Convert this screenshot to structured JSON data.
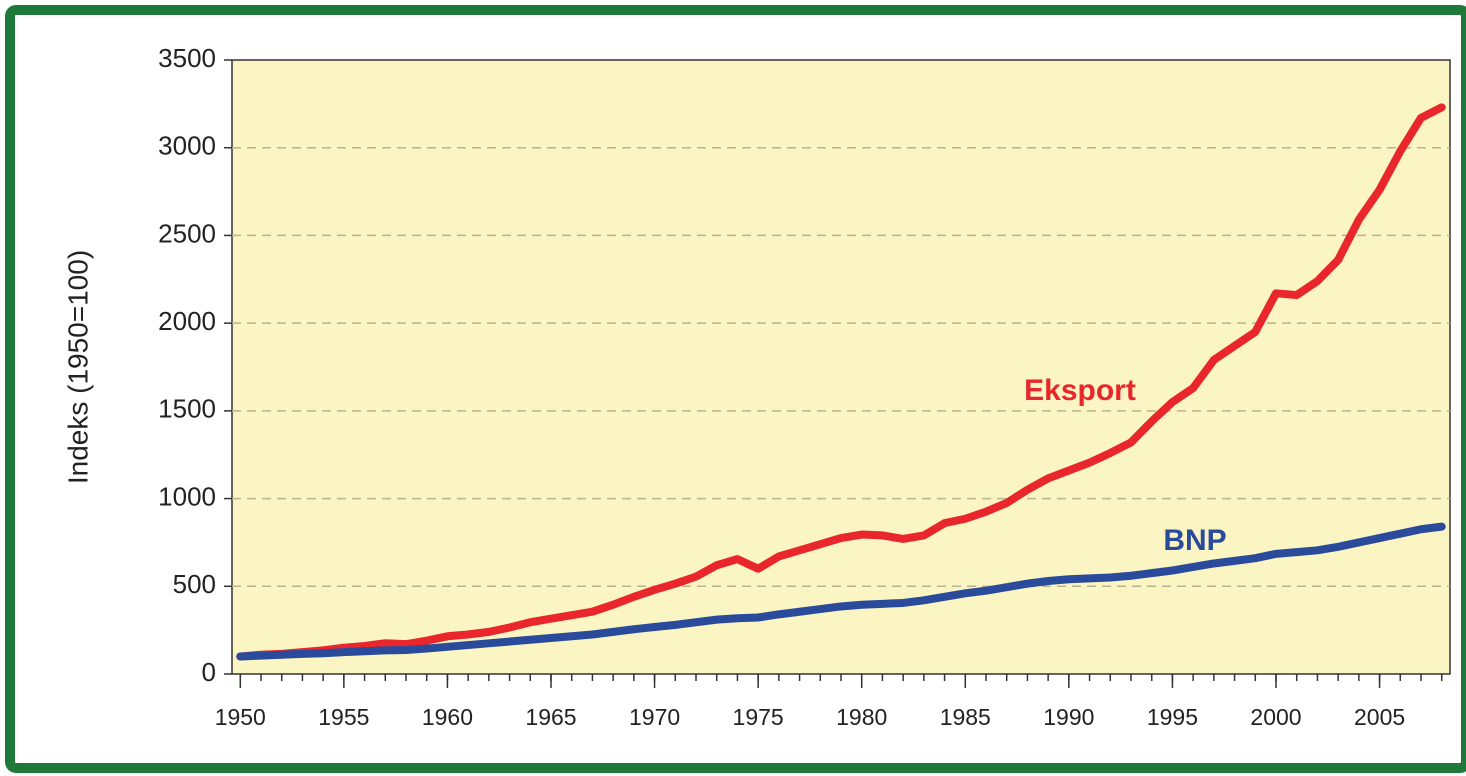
{
  "chart_data": {
    "type": "line",
    "ylabel": "Indeks (1950=100)",
    "x": [
      1950,
      1951,
      1952,
      1953,
      1954,
      1955,
      1956,
      1957,
      1958,
      1959,
      1960,
      1961,
      1962,
      1963,
      1964,
      1965,
      1966,
      1967,
      1968,
      1969,
      1970,
      1971,
      1972,
      1973,
      1974,
      1975,
      1976,
      1977,
      1978,
      1979,
      1980,
      1981,
      1982,
      1983,
      1984,
      1985,
      1986,
      1987,
      1988,
      1989,
      1990,
      1991,
      1992,
      1993,
      1994,
      1995,
      1996,
      1997,
      1998,
      1999,
      2000,
      2001,
      2002,
      2003,
      2004,
      2005,
      2006,
      2007,
      2008
    ],
    "series": [
      {
        "name": "Eksport",
        "color": "#e8262b",
        "values": [
          100,
          110,
          115,
          125,
          135,
          150,
          160,
          175,
          170,
          190,
          215,
          225,
          240,
          265,
          295,
          315,
          335,
          355,
          395,
          440,
          480,
          515,
          555,
          620,
          655,
          600,
          670,
          705,
          740,
          775,
          795,
          790,
          770,
          790,
          860,
          885,
          925,
          975,
          1050,
          1115,
          1160,
          1205,
          1260,
          1320,
          1440,
          1550,
          1630,
          1790,
          1870,
          1950,
          2170,
          2160,
          2240,
          2360,
          2590,
          2760,
          2980,
          3170,
          3230
        ]
      },
      {
        "name": "BNP",
        "color": "#2a4a9c",
        "values": [
          100,
          105,
          110,
          115,
          118,
          125,
          130,
          135,
          137,
          145,
          155,
          165,
          175,
          185,
          195,
          205,
          215,
          225,
          240,
          255,
          268,
          280,
          295,
          310,
          318,
          322,
          340,
          355,
          370,
          385,
          395,
          400,
          405,
          420,
          440,
          460,
          475,
          495,
          515,
          530,
          540,
          545,
          550,
          560,
          575,
          590,
          610,
          630,
          645,
          660,
          685,
          695,
          705,
          725,
          750,
          775,
          800,
          825,
          840
        ]
      }
    ],
    "xlim": [
      1949.6,
      2008.4
    ],
    "xticks": [
      1950,
      1955,
      1960,
      1965,
      1970,
      1975,
      1980,
      1985,
      1990,
      1995,
      2000,
      2005
    ],
    "ylim": [
      0,
      3500
    ],
    "yticks": [
      0,
      500,
      1000,
      1500,
      2000,
      2500,
      3000,
      3500
    ],
    "grid": true,
    "plot_background": "#faf5c2"
  }
}
